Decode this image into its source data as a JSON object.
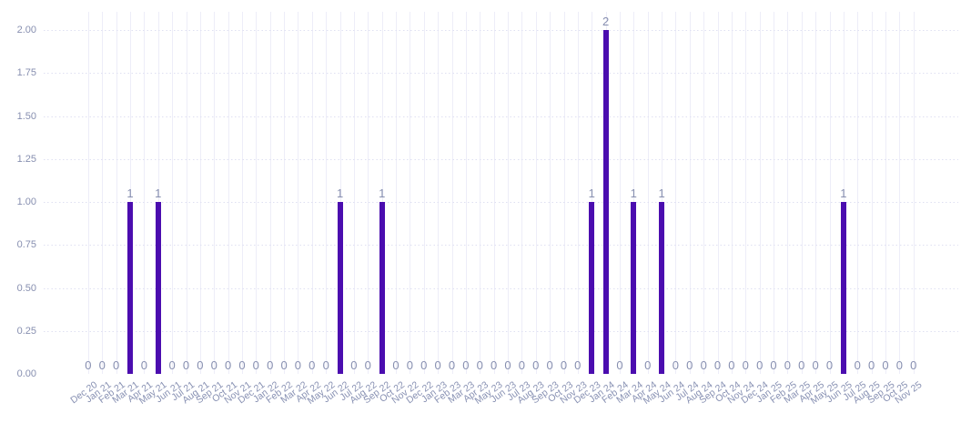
{
  "chart_data": {
    "type": "bar",
    "title": "",
    "xlabel": "",
    "ylabel": "",
    "categories": [
      "Dec 20",
      "Jan 21",
      "Feb 21",
      "Mar 21",
      "Apr 21",
      "May 21",
      "Jun 21",
      "Jul 21",
      "Aug 21",
      "Sep 21",
      "Oct 21",
      "Nov 21",
      "Dec 21",
      "Jan 22",
      "Feb 22",
      "Mar 22",
      "Apr 22",
      "May 22",
      "Jun 22",
      "Jul 22",
      "Aug 22",
      "Sep 22",
      "Oct 22",
      "Nov 22",
      "Dec 22",
      "Jan 23",
      "Feb 23",
      "Mar 23",
      "Apr 23",
      "May 23",
      "Jun 23",
      "Jul 23",
      "Aug 23",
      "Sep 23",
      "Oct 23",
      "Nov 23",
      "Dec 23",
      "Jan 24",
      "Feb 24",
      "Mar 24",
      "Apr 24",
      "May 24",
      "Jun 24",
      "Jul 24",
      "Aug 24",
      "Sep 24",
      "Oct 24",
      "Nov 24",
      "Dec 24",
      "Jan 25",
      "Feb 25",
      "Mar 25",
      "Apr 25",
      "May 25",
      "Jun 25",
      "Jul 25",
      "Aug 25",
      "Sep 25",
      "Oct 25",
      "Nov 25"
    ],
    "values": [
      0,
      0,
      0,
      1,
      0,
      1,
      0,
      0,
      0,
      0,
      0,
      0,
      0,
      0,
      0,
      0,
      0,
      0,
      1,
      0,
      0,
      1,
      0,
      0,
      0,
      0,
      0,
      0,
      0,
      0,
      0,
      0,
      0,
      0,
      0,
      0,
      1,
      2,
      0,
      1,
      0,
      1,
      0,
      0,
      0,
      0,
      0,
      0,
      0,
      0,
      0,
      0,
      0,
      0,
      1,
      0,
      0,
      0,
      0,
      0
    ],
    "value_labels_shown": true,
    "y_ticks": [
      "2.00",
      "1.75",
      "1.50",
      "1.25",
      "1.00",
      "0.75",
      "0.50",
      "0.25",
      "0.00"
    ],
    "ylim": [
      0,
      2
    ],
    "grid": true,
    "legend": "none",
    "colors": {
      "bar": "#4b0daf",
      "axis_label": "#878fb0",
      "x_label": "#8891b3",
      "grid_horizontal": "#dfe0f2",
      "grid_vertical": "#ededf8",
      "background": "#ffffff"
    }
  }
}
